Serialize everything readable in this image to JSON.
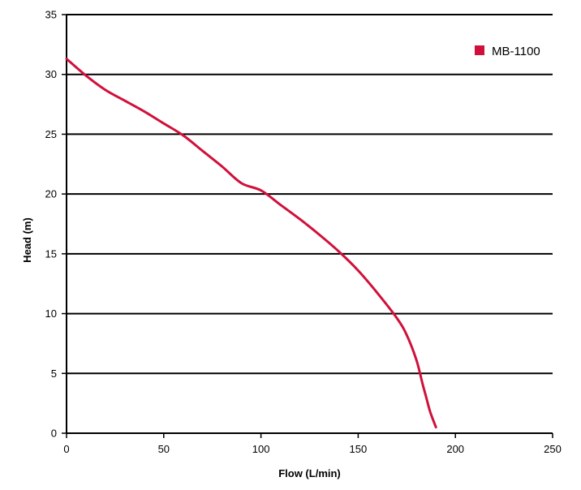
{
  "chart_data": {
    "type": "line",
    "title": "",
    "xlabel": "Flow (L/min)",
    "ylabel": "Head (m)",
    "xlim": [
      0,
      250
    ],
    "ylim": [
      0,
      35
    ],
    "x_ticks": [
      0,
      50,
      100,
      150,
      200,
      250
    ],
    "y_ticks": [
      0,
      5,
      10,
      15,
      20,
      25,
      30,
      35
    ],
    "x_tick_labels": [
      "0",
      "50",
      "100",
      "150",
      "200",
      "250"
    ],
    "y_tick_labels": [
      "0",
      "5",
      "10",
      "15",
      "20",
      "25",
      "30",
      "35"
    ],
    "grid": "horizontal",
    "legend_position": "top-right",
    "series": [
      {
        "name": "MB-1100",
        "color": "#d0103a",
        "x": [
          0,
          10,
          20,
          30,
          40,
          50,
          60,
          70,
          80,
          90,
          100,
          110,
          120,
          130,
          140,
          150,
          160,
          170,
          175,
          180,
          183,
          185,
          187,
          190
        ],
        "y": [
          31.3,
          29.9,
          28.7,
          27.8,
          26.9,
          25.9,
          24.9,
          23.6,
          22.3,
          20.9,
          20.3,
          19.1,
          17.9,
          16.6,
          15.2,
          13.6,
          11.7,
          9.6,
          8.2,
          6.1,
          4.2,
          3.0,
          1.8,
          0.5
        ]
      }
    ]
  }
}
